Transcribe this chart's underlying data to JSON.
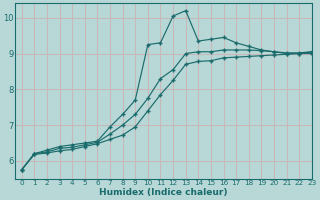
{
  "title": "",
  "xlabel": "Humidex (Indice chaleur)",
  "ylabel": "",
  "bg_color": "#b8d8d8",
  "line_color": "#1a6b6b",
  "grid_color": "#c8b8b8",
  "xlim": [
    -0.5,
    23
  ],
  "ylim": [
    5.5,
    10.4
  ],
  "yticks": [
    6,
    7,
    8,
    9,
    10
  ],
  "xticks": [
    0,
    1,
    2,
    3,
    4,
    5,
    6,
    7,
    8,
    9,
    10,
    11,
    12,
    13,
    14,
    15,
    16,
    17,
    18,
    19,
    20,
    21,
    22,
    23
  ],
  "line1_x": [
    0,
    1,
    2,
    3,
    4,
    5,
    6,
    7,
    8,
    9,
    10,
    11,
    12,
    13,
    14,
    15,
    16,
    17,
    18,
    19,
    20,
    21,
    22,
    23
  ],
  "line1_y": [
    5.75,
    6.2,
    6.3,
    6.4,
    6.45,
    6.5,
    6.55,
    6.95,
    7.3,
    7.7,
    9.25,
    9.3,
    10.05,
    10.2,
    9.35,
    9.4,
    9.45,
    9.3,
    9.2,
    9.1,
    9.05,
    9.0,
    9.0,
    9.05
  ],
  "line2_x": [
    0,
    1,
    2,
    3,
    4,
    5,
    6,
    7,
    8,
    9,
    10,
    11,
    12,
    13,
    14,
    15,
    16,
    17,
    18,
    19,
    20,
    21,
    22,
    23
  ],
  "line2_y": [
    5.75,
    6.2,
    6.25,
    6.35,
    6.38,
    6.45,
    6.52,
    6.75,
    7.0,
    7.3,
    7.75,
    8.3,
    8.55,
    9.0,
    9.05,
    9.05,
    9.1,
    9.1,
    9.1,
    9.08,
    9.05,
    9.02,
    9.02,
    9.05
  ],
  "line3_x": [
    0,
    1,
    2,
    3,
    4,
    5,
    6,
    7,
    8,
    9,
    10,
    11,
    12,
    13,
    14,
    15,
    16,
    17,
    18,
    19,
    20,
    21,
    22,
    23
  ],
  "line3_y": [
    5.75,
    6.18,
    6.22,
    6.28,
    6.32,
    6.4,
    6.48,
    6.6,
    6.72,
    6.95,
    7.4,
    7.85,
    8.25,
    8.7,
    8.78,
    8.8,
    8.88,
    8.9,
    8.92,
    8.94,
    8.96,
    8.98,
    9.0,
    9.0
  ]
}
